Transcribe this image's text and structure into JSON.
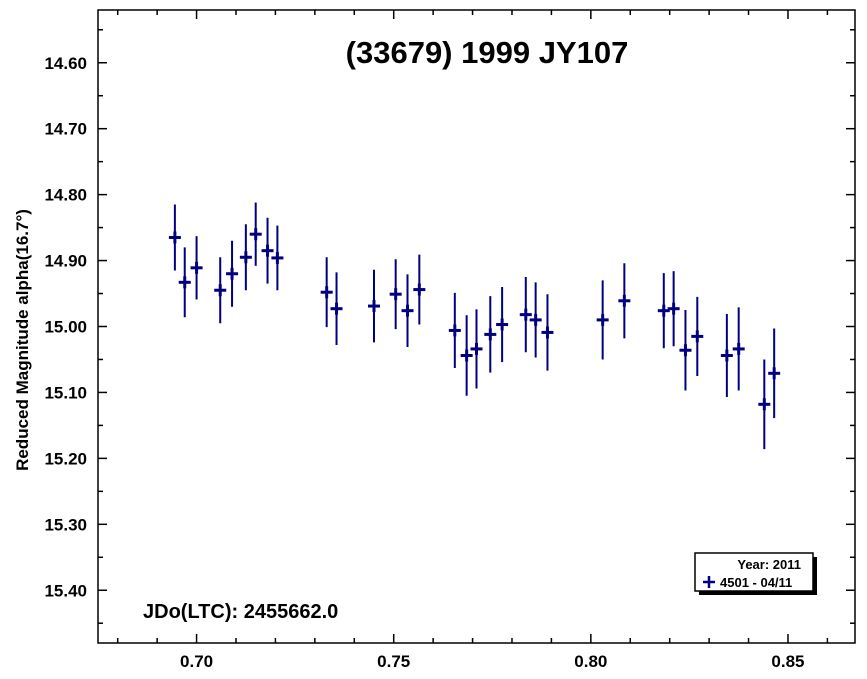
{
  "chart_data": {
    "type": "scatter",
    "title": "(33679) 1999 JY107",
    "xlabel": "",
    "ylabel": "Reduced Magnitude alpha(16.7°)",
    "xlim": [
      0.675,
      0.867
    ],
    "ylim": [
      15.48,
      14.52
    ],
    "y_inverted": true,
    "x_ticks": [
      0.7,
      0.75,
      0.8,
      0.85
    ],
    "x_tick_labels": [
      "0.70",
      "0.75",
      "0.80",
      "0.85"
    ],
    "y_ticks": [
      14.6,
      14.7,
      14.8,
      14.9,
      15.0,
      15.1,
      15.2,
      15.3,
      15.4
    ],
    "y_tick_labels": [
      "14.60",
      "14.70",
      "14.80",
      "14.90",
      "15.00",
      "15.10",
      "15.20",
      "15.30",
      "15.40"
    ],
    "annotation": "JDo(LTC): 2455662.0",
    "color": "#000080",
    "legend": {
      "position": "bottom-right",
      "header": "Year: 2011",
      "entries": [
        "4501 - 04/11"
      ]
    },
    "series": [
      {
        "name": "4501 - 04/11",
        "marker": "plus",
        "points": [
          {
            "x": 0.6945,
            "y": 14.865,
            "err": 0.05
          },
          {
            "x": 0.697,
            "y": 14.933,
            "err": 0.053
          },
          {
            "x": 0.7,
            "y": 14.911,
            "err": 0.048
          },
          {
            "x": 0.706,
            "y": 14.945,
            "err": 0.05
          },
          {
            "x": 0.709,
            "y": 14.92,
            "err": 0.05
          },
          {
            "x": 0.7125,
            "y": 14.895,
            "err": 0.05
          },
          {
            "x": 0.715,
            "y": 14.86,
            "err": 0.048
          },
          {
            "x": 0.718,
            "y": 14.885,
            "err": 0.05
          },
          {
            "x": 0.7205,
            "y": 14.896,
            "err": 0.049
          },
          {
            "x": 0.733,
            "y": 14.948,
            "err": 0.053
          },
          {
            "x": 0.7355,
            "y": 14.973,
            "err": 0.055
          },
          {
            "x": 0.745,
            "y": 14.969,
            "err": 0.055
          },
          {
            "x": 0.7505,
            "y": 14.951,
            "err": 0.053
          },
          {
            "x": 0.7535,
            "y": 14.976,
            "err": 0.055
          },
          {
            "x": 0.7565,
            "y": 14.944,
            "err": 0.053
          },
          {
            "x": 0.7655,
            "y": 15.006,
            "err": 0.057
          },
          {
            "x": 0.7685,
            "y": 15.044,
            "err": 0.061
          },
          {
            "x": 0.771,
            "y": 15.034,
            "err": 0.06
          },
          {
            "x": 0.7745,
            "y": 15.012,
            "err": 0.058
          },
          {
            "x": 0.7775,
            "y": 14.997,
            "err": 0.057
          },
          {
            "x": 0.7835,
            "y": 14.982,
            "err": 0.057
          },
          {
            "x": 0.786,
            "y": 14.99,
            "err": 0.057
          },
          {
            "x": 0.789,
            "y": 15.009,
            "err": 0.058
          },
          {
            "x": 0.803,
            "y": 14.99,
            "err": 0.06
          },
          {
            "x": 0.8085,
            "y": 14.961,
            "err": 0.057
          },
          {
            "x": 0.8185,
            "y": 14.976,
            "err": 0.057
          },
          {
            "x": 0.821,
            "y": 14.973,
            "err": 0.057
          },
          {
            "x": 0.824,
            "y": 15.036,
            "err": 0.061
          },
          {
            "x": 0.827,
            "y": 15.015,
            "err": 0.06
          },
          {
            "x": 0.8345,
            "y": 15.044,
            "err": 0.063
          },
          {
            "x": 0.8375,
            "y": 15.034,
            "err": 0.063
          },
          {
            "x": 0.844,
            "y": 15.118,
            "err": 0.068
          },
          {
            "x": 0.8465,
            "y": 15.071,
            "err": 0.068
          }
        ]
      }
    ]
  }
}
